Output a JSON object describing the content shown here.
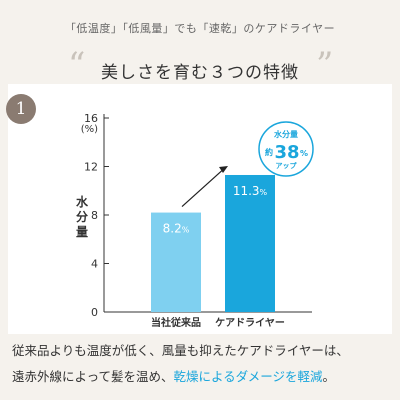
{
  "top_caption": "「低温度」「低風量」でも「速乾」のケアドライヤー",
  "headline": {
    "open_quote": "“",
    "text": "美しさを育む３つの特徴",
    "close_quote": "”"
  },
  "number_badge": "1",
  "chart_data": {
    "type": "bar",
    "categories": [
      "当社従来品",
      "ケアドライヤー"
    ],
    "values": [
      8.2,
      11.3
    ],
    "value_labels": [
      "8.2",
      "11.3"
    ],
    "value_unit": "%",
    "ylabel": "水分量",
    "yunit_label": "(%)",
    "ylim": [
      0,
      16
    ],
    "yticks": [
      0,
      4,
      8,
      12,
      16
    ],
    "bar_colors": [
      "#7fd0f0",
      "#1aa6dc"
    ],
    "grid": false,
    "badge": {
      "line1": "水分量",
      "prefix": "約",
      "value": "38",
      "unit": "%",
      "line3": "アップ"
    }
  },
  "footer": {
    "line1": "従来品よりも温度が低く、風量も抑えたケアドライヤーは、",
    "line2_plain": "遠赤外線によって髪を温め、",
    "line2_highlight": "乾燥によるダメージを軽減",
    "line2_end": "。"
  },
  "colors": {
    "accent": "#1aa6dc",
    "bar_light": "#7fd0f0",
    "badge_bg": "#8a7b71",
    "background": "#f5f2ed"
  }
}
